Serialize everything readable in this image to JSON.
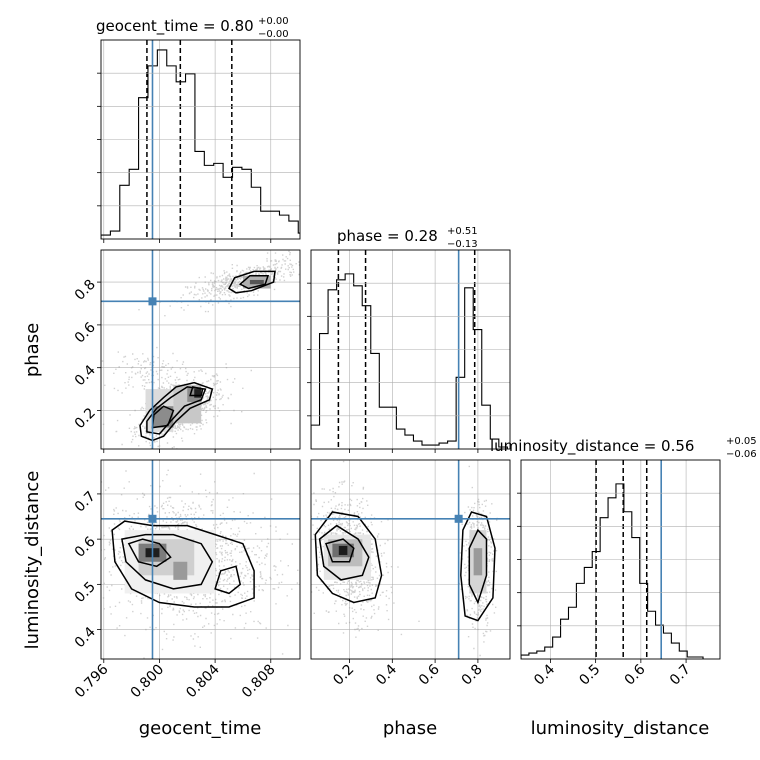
{
  "chart_data": {
    "type": "corner",
    "parameters": [
      "geocent_time",
      "phase",
      "luminosity_distance"
    ],
    "truth": {
      "geocent_time": 0.7995,
      "phase": 0.71,
      "luminosity_distance": 0.645
    },
    "colors": {
      "truth": "#4682b4",
      "hist": "#000000",
      "grid": "#b0b0b0",
      "scatter": "#9a9a9a"
    },
    "grid": true,
    "titles": [
      {
        "name": "geocent_time",
        "text": "geocent_time = 0.80",
        "sup": "+0.00",
        "sub": "−0.00"
      },
      {
        "name": "phase",
        "text": "phase = 0.28",
        "sup": "+0.51",
        "sub": "−0.13"
      },
      {
        "name": "luminosity_distance",
        "text": "luminosity_distance = 0.56",
        "sup": "+0.05",
        "sub": "−0.06"
      }
    ],
    "xlabels": [
      "geocent_time",
      "phase",
      "luminosity_distance"
    ],
    "ylabels": [
      "phase",
      "luminosity_distance"
    ],
    "ranges": {
      "geocent_time": [
        0.7958,
        0.8101
      ],
      "phase": [
        0.02,
        0.95
      ],
      "luminosity_distance": [
        0.335,
        0.775
      ]
    },
    "ticks": {
      "geocent_time": [
        "0.796",
        "0.800",
        "0.804",
        "0.808"
      ],
      "phase": [
        "0.2",
        "0.4",
        "0.6",
        "0.8"
      ],
      "luminosity_distance": [
        "0.4",
        "0.5",
        "0.6",
        "0.7"
      ],
      "luminosity_distance_y": [
        "0.4",
        "0.5",
        "0.6",
        "0.7"
      ]
    },
    "quantiles": {
      "geocent_time": [
        0.7991,
        0.8015,
        0.8052
      ],
      "phase": [
        0.148,
        0.275,
        0.785
      ],
      "luminosity_distance": [
        0.501,
        0.561,
        0.613
      ]
    },
    "histograms": {
      "geocent_time": {
        "edges_start": 0.7958,
        "edges_step": 0.000675,
        "counts": [
          0.02,
          0.04,
          0.27,
          0.35,
          0.71,
          0.87,
          0.95,
          0.87,
          0.79,
          0.83,
          0.44,
          0.37,
          0.38,
          0.31,
          0.36,
          0.35,
          0.26,
          0.14,
          0.14,
          0.12,
          0.09,
          0.03
        ]
      },
      "phase": {
        "edges_start": 0.02,
        "edges_step": 0.0399,
        "counts": [
          0.12,
          0.58,
          0.8,
          0.85,
          0.88,
          0.82,
          0.72,
          0.48,
          0.21,
          0.21,
          0.1,
          0.07,
          0.04,
          0.02,
          0.02,
          0.03,
          0.04,
          0.36,
          0.81,
          0.6,
          0.22,
          0.05,
          0.01
        ]
      },
      "luminosity_distance": {
        "edges_start": 0.335,
        "edges_step": 0.0175,
        "counts": [
          0.02,
          0.03,
          0.04,
          0.06,
          0.11,
          0.2,
          0.26,
          0.38,
          0.46,
          0.54,
          0.71,
          0.81,
          0.88,
          0.74,
          0.61,
          0.38,
          0.24,
          0.17,
          0.13,
          0.08,
          0.04,
          0.01,
          0.01
        ]
      }
    }
  }
}
